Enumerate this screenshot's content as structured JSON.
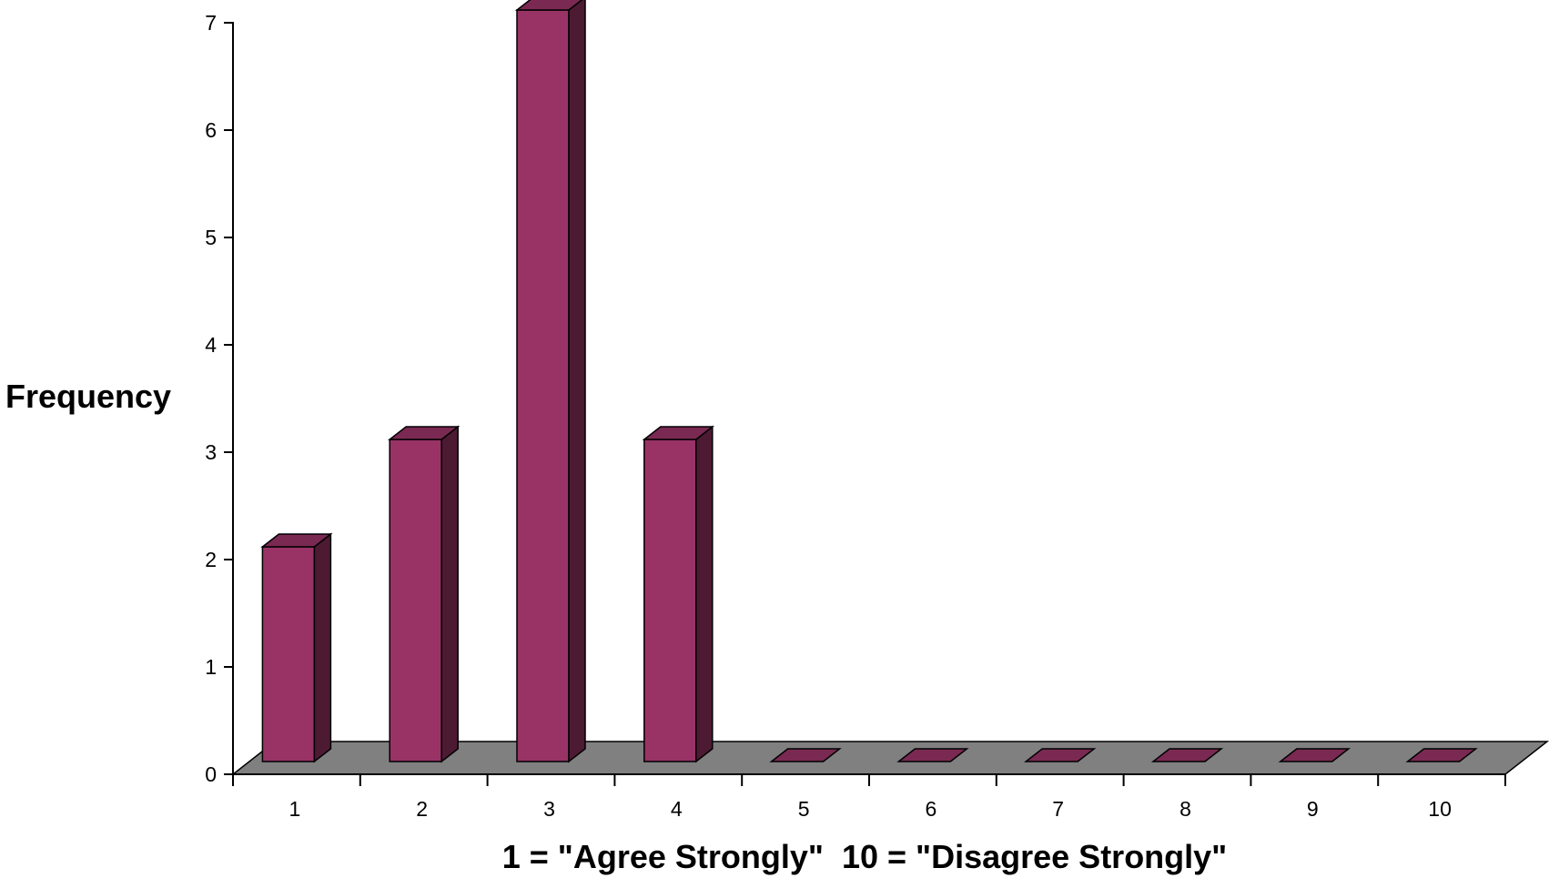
{
  "chart_data": {
    "type": "bar",
    "title": "",
    "xlabel": "1 = \"Agree Strongly\"  10 = \"Disagree Strongly\"",
    "ylabel": "Frequency",
    "categories": [
      "1",
      "2",
      "3",
      "4",
      "5",
      "6",
      "7",
      "8",
      "9",
      "10"
    ],
    "values": [
      2,
      3,
      7,
      3,
      0,
      0,
      0,
      0,
      0,
      0
    ],
    "ylim": [
      0,
      7
    ],
    "yticks": [
      "0",
      "1",
      "2",
      "3",
      "4",
      "5",
      "6",
      "7"
    ],
    "grid": false,
    "style": "3d-bar",
    "colors": {
      "bar_front": "#993366",
      "bar_side": "#4d1a33",
      "bar_top": "#7a2952",
      "floor": "#808080",
      "axis": "#000000"
    }
  }
}
